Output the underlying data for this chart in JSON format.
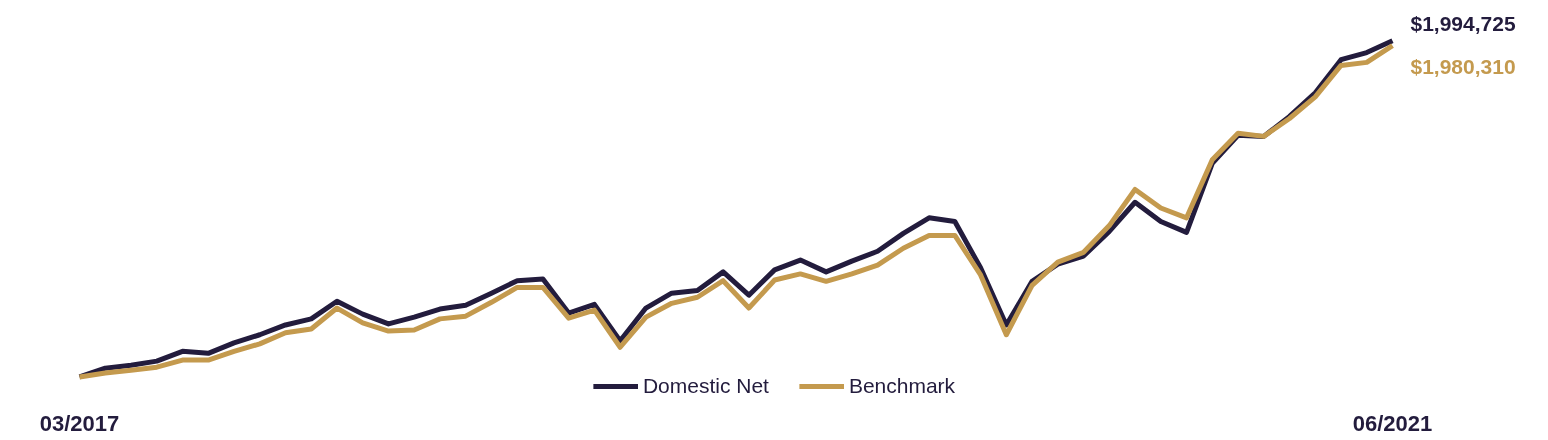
{
  "chart_data": {
    "type": "line",
    "categories": [
      "03/2017",
      null,
      null,
      null,
      null,
      null,
      null,
      null,
      null,
      null,
      null,
      null,
      null,
      null,
      null,
      null,
      null,
      null,
      null,
      null,
      null,
      null,
      null,
      null,
      null,
      null,
      null,
      null,
      null,
      null,
      null,
      null,
      null,
      null,
      null,
      null,
      null,
      null,
      null,
      null,
      null,
      null,
      null,
      null,
      null,
      null,
      null,
      null,
      null,
      null,
      null,
      "06/2021"
    ],
    "series": [
      {
        "name": "Domestic Net",
        "color": "#231c3d",
        "values": [
          1000000,
          1026000,
          1035000,
          1047000,
          1076000,
          1070000,
          1101000,
          1125000,
          1154000,
          1172000,
          1224000,
          1186000,
          1157000,
          1177000,
          1201000,
          1212000,
          1248000,
          1285000,
          1290000,
          1189000,
          1215000,
          1107000,
          1204000,
          1248000,
          1256000,
          1311000,
          1242000,
          1317000,
          1346000,
          1311000,
          1343000,
          1372000,
          1425000,
          1471000,
          1460000,
          1323000,
          1154000,
          1283000,
          1334000,
          1358000,
          1431000,
          1517000,
          1460000,
          1428000,
          1632000,
          1715000,
          1712000,
          1771000,
          1841000,
          1939000,
          1960000,
          1994725
        ],
        "value_labels": [
          null,
          null,
          null,
          null,
          null,
          null,
          null,
          null,
          null,
          null,
          null,
          null,
          null,
          null,
          null,
          null,
          null,
          null,
          null,
          null,
          null,
          null,
          null,
          null,
          null,
          null,
          null,
          null,
          null,
          null,
          null,
          null,
          null,
          null,
          null,
          null,
          null,
          null,
          null,
          null,
          null,
          null,
          null,
          null,
          null,
          null,
          null,
          null,
          null,
          null,
          null,
          "$1,994,725"
        ]
      },
      {
        "name": "Benchmark",
        "color": "#c49a4e",
        "values": [
          1000000,
          1012000,
          1020000,
          1029000,
          1050000,
          1050000,
          1076000,
          1098000,
          1131000,
          1142000,
          1204000,
          1160000,
          1136000,
          1139000,
          1172000,
          1180000,
          1221000,
          1265000,
          1265000,
          1174000,
          1198000,
          1088000,
          1177000,
          1218000,
          1236000,
          1285000,
          1204000,
          1287000,
          1305000,
          1283000,
          1305000,
          1331000,
          1381000,
          1419000,
          1419000,
          1302000,
          1125000,
          1271000,
          1340000,
          1369000,
          1448000,
          1555000,
          1500000,
          1471000,
          1643000,
          1721000,
          1712000,
          1765000,
          1829000,
          1922000,
          1931000,
          1980310
        ],
        "value_labels": [
          null,
          null,
          null,
          null,
          null,
          null,
          null,
          null,
          null,
          null,
          null,
          null,
          null,
          null,
          null,
          null,
          null,
          null,
          null,
          null,
          null,
          null,
          null,
          null,
          null,
          null,
          null,
          null,
          null,
          null,
          null,
          null,
          null,
          null,
          null,
          null,
          null,
          null,
          null,
          null,
          null,
          null,
          null,
          null,
          null,
          null,
          null,
          null,
          null,
          null,
          null,
          "$1,980,310"
        ]
      }
    ],
    "legend": "bottom"
  }
}
